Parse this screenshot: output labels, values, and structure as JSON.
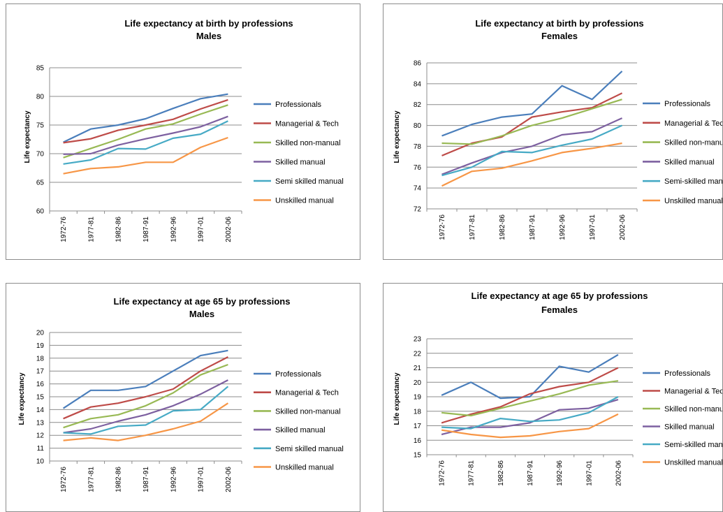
{
  "colors": {
    "Professionals": "#4a7ebb",
    "Managerial & Tech": "#be4b48",
    "Skilled non-manual": "#98b954",
    "Skilled manual": "#7d60a0",
    "Semi skilled manual": "#46aac5",
    "Unskilled manual": "#f79646"
  },
  "chart_data": [
    {
      "type": "line",
      "title": "Life expectancy at birth by professions",
      "subtitle": "Males",
      "xlabel": "",
      "ylabel": "Life expectancy",
      "ylim": [
        60,
        85
      ],
      "yticks": [
        60,
        65,
        70,
        75,
        80,
        85
      ],
      "grid": "horizontal",
      "legend": "right",
      "categories": [
        "1972-76",
        "1977-81",
        "1982-86",
        "1987-91",
        "1992-96",
        "1997-01",
        "2002-06"
      ],
      "series": [
        {
          "name": "Professionals",
          "values": [
            72.0,
            74.3,
            75.0,
            76.1,
            77.9,
            79.6,
            80.4
          ]
        },
        {
          "name": "Managerial & Tech",
          "values": [
            71.9,
            72.6,
            74.1,
            75.0,
            76.0,
            77.8,
            79.4
          ]
        },
        {
          "name": "Skilled non-manual",
          "values": [
            69.3,
            70.9,
            72.5,
            74.3,
            75.2,
            76.9,
            78.5
          ]
        },
        {
          "name": "Skilled manual",
          "values": [
            69.9,
            70.0,
            71.5,
            72.6,
            73.6,
            74.7,
            76.5
          ]
        },
        {
          "name": "Semi skilled manual",
          "values": [
            68.2,
            68.9,
            70.9,
            70.8,
            72.7,
            73.4,
            75.7
          ]
        },
        {
          "name": "Unskilled manual",
          "values": [
            66.5,
            67.4,
            67.7,
            68.5,
            68.5,
            71.1,
            72.8
          ]
        }
      ]
    },
    {
      "type": "line",
      "title": "Life expectancy at birth by professions",
      "subtitle": "Females",
      "xlabel": "",
      "ylabel": "Life expectancy",
      "ylim": [
        72,
        86
      ],
      "yticks": [
        72,
        74,
        76,
        78,
        80,
        82,
        84,
        86
      ],
      "grid": "horizontal",
      "legend": "right",
      "categories": [
        "1972-76",
        "1977-81",
        "1982-86",
        "1987-91",
        "1992-96",
        "1997-01",
        "2002-06"
      ],
      "series": [
        {
          "name": "Professionals",
          "values": [
            79.0,
            80.1,
            80.8,
            81.1,
            83.8,
            82.5,
            85.2
          ]
        },
        {
          "name": "Managerial & Tech",
          "values": [
            77.1,
            78.3,
            78.9,
            80.8,
            81.3,
            81.7,
            83.1
          ]
        },
        {
          "name": "Skilled non-manual",
          "values": [
            78.3,
            78.2,
            79.0,
            80.0,
            80.7,
            81.6,
            82.5
          ]
        },
        {
          "name": "Skilled manual",
          "values": [
            75.3,
            76.4,
            77.4,
            78.0,
            79.1,
            79.4,
            80.7
          ]
        },
        {
          "name": "Semi-skilled manual",
          "values": [
            75.2,
            76.0,
            77.5,
            77.4,
            78.1,
            78.7,
            80.0
          ]
        },
        {
          "name": "Unskilled manual",
          "values": [
            74.2,
            75.6,
            75.9,
            76.6,
            77.4,
            77.8,
            78.3
          ]
        }
      ]
    },
    {
      "type": "line",
      "title": "Life expectancy at age 65 by professions",
      "subtitle": "Males",
      "xlabel": "",
      "ylabel": "Life expectancy",
      "ylim": [
        10,
        20
      ],
      "yticks": [
        10,
        11,
        12,
        13,
        14,
        15,
        16,
        17,
        18,
        19,
        20
      ],
      "grid": "horizontal",
      "legend": "right",
      "categories": [
        "1972-76",
        "1977-81",
        "1982-86",
        "1987-91",
        "1992-96",
        "1997-01",
        "2002-06"
      ],
      "series": [
        {
          "name": "Professionals",
          "values": [
            14.1,
            15.5,
            15.5,
            15.8,
            17.0,
            18.2,
            18.6
          ]
        },
        {
          "name": "Managerial & Tech",
          "values": [
            13.3,
            14.2,
            14.5,
            15.0,
            15.6,
            17.0,
            18.1
          ]
        },
        {
          "name": "Skilled non-manual",
          "values": [
            12.6,
            13.3,
            13.6,
            14.3,
            15.3,
            16.7,
            17.5
          ]
        },
        {
          "name": "Skilled manual",
          "values": [
            12.2,
            12.5,
            13.1,
            13.6,
            14.3,
            15.2,
            16.3
          ]
        },
        {
          "name": "Semi skilled manual",
          "values": [
            12.2,
            12.1,
            12.7,
            12.8,
            13.9,
            14.0,
            15.8
          ]
        },
        {
          "name": "Unskilled manual",
          "values": [
            11.6,
            11.8,
            11.6,
            12.0,
            12.5,
            13.1,
            14.5
          ]
        }
      ]
    },
    {
      "type": "line",
      "title": "Life expectancy at age 65 by professions",
      "subtitle": "Females",
      "xlabel": "",
      "ylabel": "Life expectancy",
      "ylim": [
        15,
        23
      ],
      "yticks": [
        15,
        16,
        17,
        18,
        19,
        20,
        21,
        22,
        23
      ],
      "grid": "horizontal",
      "legend": "right",
      "categories": [
        "1972-76",
        "1977-81",
        "1982-86",
        "1987-91",
        "1992-96",
        "1997-01",
        "2002-06"
      ],
      "series": [
        {
          "name": "Professionals",
          "values": [
            19.1,
            20.0,
            18.9,
            19.0,
            21.1,
            20.7,
            21.9
          ]
        },
        {
          "name": "Managerial & Tech",
          "values": [
            17.2,
            17.8,
            18.3,
            19.2,
            19.7,
            20.0,
            21.0
          ]
        },
        {
          "name": "Skilled non-manual",
          "values": [
            17.9,
            17.7,
            18.2,
            18.7,
            19.2,
            19.8,
            20.1
          ]
        },
        {
          "name": "Skilled manual",
          "values": [
            16.4,
            16.9,
            16.9,
            17.2,
            18.1,
            18.2,
            18.8
          ]
        },
        {
          "name": "Semi-skilled manual",
          "values": [
            16.9,
            16.8,
            17.5,
            17.3,
            17.4,
            17.9,
            19.0
          ]
        },
        {
          "name": "Unskilled manual",
          "values": [
            16.7,
            16.4,
            16.2,
            16.3,
            16.6,
            16.8,
            17.8
          ]
        }
      ]
    }
  ]
}
